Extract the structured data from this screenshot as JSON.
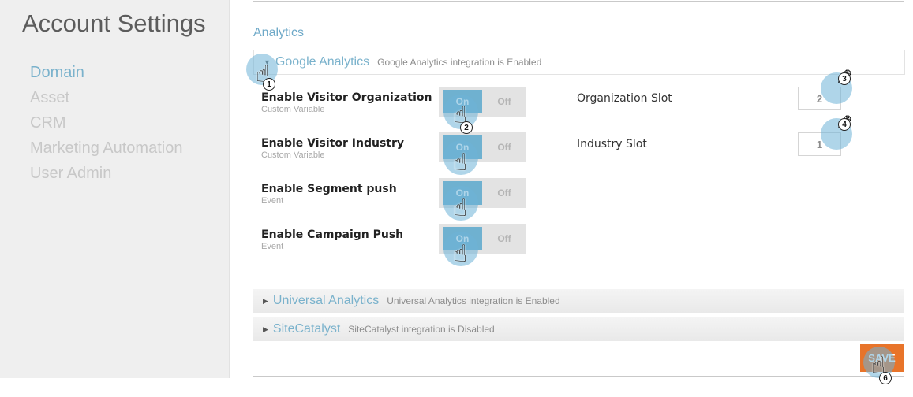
{
  "sidebar": {
    "title": "Account Settings",
    "items": [
      {
        "label": "Domain"
      },
      {
        "label": "Asset"
      },
      {
        "label": "CRM"
      },
      {
        "label": "Marketing Automation"
      },
      {
        "label": "User Admin"
      }
    ]
  },
  "main": {
    "section_title": "Analytics",
    "google": {
      "title": "Google Analytics",
      "status": "Google Analytics integration is Enabled",
      "settings": [
        {
          "title": "Enable Visitor Organization",
          "sub": "Custom Variable",
          "on": "On",
          "off": "Off",
          "state": "on"
        },
        {
          "title": "Enable Visitor Industry",
          "sub": "Custom Variable",
          "on": "On",
          "off": "Off",
          "state": "on"
        },
        {
          "title": "Enable Segment push",
          "sub": "Event",
          "on": "On",
          "off": "Off",
          "state": "on"
        },
        {
          "title": "Enable Campaign Push",
          "sub": "Event",
          "on": "On",
          "off": "Off",
          "state": "on"
        }
      ],
      "slots": [
        {
          "label": "Organization Slot",
          "value": "2"
        },
        {
          "label": "Industry Slot",
          "value": "1"
        }
      ]
    },
    "universal": {
      "title": "Universal Analytics",
      "status": "Universal Analytics integration is Enabled"
    },
    "sitecatalyst": {
      "title": "SiteCatalyst",
      "status": "SiteCatalyst integration is Disabled"
    },
    "save_label": "SAVE"
  },
  "callouts": [
    "1",
    "2",
    "3",
    "4",
    "6"
  ],
  "icons": {
    "caret_open": "triangle-down-icon",
    "caret_closed": "triangle-right-icon",
    "hand": "pointer-hand-icon",
    "pencil": "pencil-icon"
  },
  "colors": {
    "accent": "#7ab2cc",
    "toggle_on": "#6fb1d0",
    "save": "#e8742a"
  }
}
